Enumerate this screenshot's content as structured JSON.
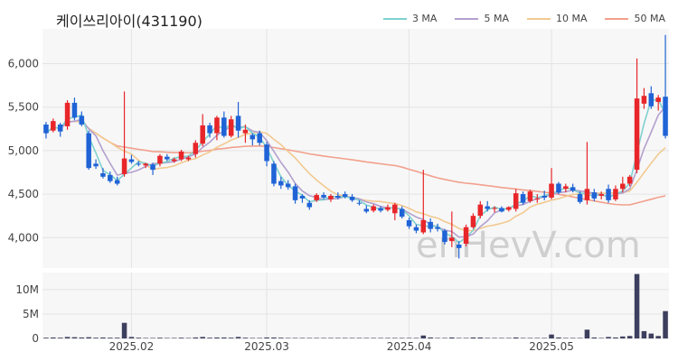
{
  "title": "케이쓰리아이(431190)",
  "watermark": "enHevV.com",
  "colors": {
    "up": "#e8262a",
    "down": "#1f63d6",
    "volume": "#3d3f5e",
    "ma3": "#7fd1cf",
    "ma5": "#b3a0cf",
    "ma10": "#f2c991",
    "ma50": "#f2a08c"
  },
  "legend": [
    {
      "label": "3 MA",
      "color": "#7fd1cf"
    },
    {
      "label": "5 MA",
      "color": "#b3a0cf"
    },
    {
      "label": "10 MA",
      "color": "#f2c991"
    },
    {
      "label": "50 MA",
      "color": "#f2a08c"
    }
  ],
  "chart_data": {
    "type": "candlestick",
    "title": "케이쓰리아이(431190)",
    "price_axis": {
      "ticks": [
        4000,
        4500,
        5000,
        5500,
        6000
      ],
      "tick_labels": [
        "4,000",
        "4,500",
        "5,000",
        "5,500",
        "6,000"
      ],
      "range": [
        3650,
        6400
      ]
    },
    "volume_axis": {
      "ticks": [
        0,
        5,
        10
      ],
      "tick_labels": [
        "0",
        "5M",
        "10M"
      ],
      "range": [
        0,
        13.5
      ],
      "unit": "M"
    },
    "x_tick_labels": [
      {
        "index": 12,
        "label": "2025.02"
      },
      {
        "index": 31,
        "label": "2025.03"
      },
      {
        "index": 51,
        "label": "2025.04"
      },
      {
        "index": 71,
        "label": "2025.05"
      }
    ],
    "grid": true,
    "candles": [
      {
        "o": 5300,
        "h": 5330,
        "l": 5140,
        "c": 5200
      },
      {
        "o": 5230,
        "h": 5370,
        "l": 5210,
        "c": 5340
      },
      {
        "o": 5300,
        "h": 5320,
        "l": 5160,
        "c": 5220
      },
      {
        "o": 5280,
        "h": 5580,
        "l": 5240,
        "c": 5550
      },
      {
        "o": 5550,
        "h": 5610,
        "l": 5350,
        "c": 5380
      },
      {
        "o": 5400,
        "h": 5450,
        "l": 5280,
        "c": 5300
      },
      {
        "o": 5200,
        "h": 5230,
        "l": 4780,
        "c": 4800
      },
      {
        "o": 4850,
        "h": 4900,
        "l": 4790,
        "c": 4820
      },
      {
        "o": 4740,
        "h": 4800,
        "l": 4680,
        "c": 4700
      },
      {
        "o": 4720,
        "h": 4760,
        "l": 4630,
        "c": 4650
      },
      {
        "o": 4660,
        "h": 4700,
        "l": 4600,
        "c": 4620
      },
      {
        "o": 4730,
        "h": 5680,
        "l": 4700,
        "c": 4910
      },
      {
        "o": 4900,
        "h": 4950,
        "l": 4850,
        "c": 4870
      },
      {
        "o": 4850,
        "h": 4880,
        "l": 4820,
        "c": 4840
      },
      {
        "o": 4830,
        "h": 4860,
        "l": 4800,
        "c": 4850
      },
      {
        "o": 4840,
        "h": 4860,
        "l": 4720,
        "c": 4780
      },
      {
        "o": 4850,
        "h": 4960,
        "l": 4820,
        "c": 4940
      },
      {
        "o": 4930,
        "h": 4960,
        "l": 4880,
        "c": 4900
      },
      {
        "o": 4880,
        "h": 4920,
        "l": 4860,
        "c": 4900
      },
      {
        "o": 4900,
        "h": 5010,
        "l": 4880,
        "c": 4990
      },
      {
        "o": 4900,
        "h": 4940,
        "l": 4880,
        "c": 4920
      },
      {
        "o": 4960,
        "h": 5120,
        "l": 4920,
        "c": 5090
      },
      {
        "o": 5080,
        "h": 5420,
        "l": 5050,
        "c": 5290
      },
      {
        "o": 5290,
        "h": 5320,
        "l": 5150,
        "c": 5200
      },
      {
        "o": 5200,
        "h": 5400,
        "l": 5120,
        "c": 5380
      },
      {
        "o": 5380,
        "h": 5450,
        "l": 5150,
        "c": 5170
      },
      {
        "o": 5170,
        "h": 5400,
        "l": 5150,
        "c": 5360
      },
      {
        "o": 5400,
        "h": 5560,
        "l": 5150,
        "c": 5230
      },
      {
        "o": 5200,
        "h": 5300,
        "l": 5090,
        "c": 5240
      },
      {
        "o": 5180,
        "h": 5200,
        "l": 5060,
        "c": 5130
      },
      {
        "o": 5200,
        "h": 5230,
        "l": 5060,
        "c": 5090
      },
      {
        "o": 5070,
        "h": 5100,
        "l": 4820,
        "c": 4880
      },
      {
        "o": 4850,
        "h": 4880,
        "l": 4590,
        "c": 4620
      },
      {
        "o": 4650,
        "h": 4700,
        "l": 4560,
        "c": 4600
      },
      {
        "o": 4620,
        "h": 4660,
        "l": 4550,
        "c": 4580
      },
      {
        "o": 4590,
        "h": 4620,
        "l": 4390,
        "c": 4430
      },
      {
        "o": 4480,
        "h": 4500,
        "l": 4400,
        "c": 4450
      },
      {
        "o": 4400,
        "h": 4430,
        "l": 4320,
        "c": 4350
      },
      {
        "o": 4430,
        "h": 4510,
        "l": 4410,
        "c": 4490
      },
      {
        "o": 4490,
        "h": 4520,
        "l": 4440,
        "c": 4460
      },
      {
        "o": 4440,
        "h": 4500,
        "l": 4410,
        "c": 4480
      },
      {
        "o": 4480,
        "h": 4520,
        "l": 4440,
        "c": 4460
      },
      {
        "o": 4500,
        "h": 4530,
        "l": 4450,
        "c": 4470
      },
      {
        "o": 4470,
        "h": 4500,
        "l": 4410,
        "c": 4430
      },
      {
        "o": 4400,
        "h": 4430,
        "l": 4370,
        "c": 4390
      },
      {
        "o": 4330,
        "h": 4370,
        "l": 4280,
        "c": 4300
      },
      {
        "o": 4310,
        "h": 4380,
        "l": 4290,
        "c": 4360
      },
      {
        "o": 4340,
        "h": 4360,
        "l": 4290,
        "c": 4310
      },
      {
        "o": 4320,
        "h": 4380,
        "l": 4300,
        "c": 4350
      },
      {
        "o": 4280,
        "h": 4400,
        "l": 4200,
        "c": 4380
      },
      {
        "o": 4330,
        "h": 4360,
        "l": 4220,
        "c": 4240
      },
      {
        "o": 4200,
        "h": 4230,
        "l": 4100,
        "c": 4130
      },
      {
        "o": 4120,
        "h": 4150,
        "l": 4050,
        "c": 4080
      },
      {
        "o": 4060,
        "h": 4780,
        "l": 4040,
        "c": 4200
      },
      {
        "o": 4180,
        "h": 4220,
        "l": 4060,
        "c": 4100
      },
      {
        "o": 4120,
        "h": 4160,
        "l": 4070,
        "c": 4100
      },
      {
        "o": 4080,
        "h": 4100,
        "l": 3920,
        "c": 3950
      },
      {
        "o": 3960,
        "h": 4300,
        "l": 3890,
        "c": 4000
      },
      {
        "o": 3920,
        "h": 3960,
        "l": 3760,
        "c": 3880
      },
      {
        "o": 3930,
        "h": 4150,
        "l": 3900,
        "c": 4120
      },
      {
        "o": 4120,
        "h": 4280,
        "l": 4100,
        "c": 4250
      },
      {
        "o": 4250,
        "h": 4420,
        "l": 4220,
        "c": 4380
      },
      {
        "o": 4360,
        "h": 4420,
        "l": 4300,
        "c": 4330
      },
      {
        "o": 4330,
        "h": 4360,
        "l": 4290,
        "c": 4340
      },
      {
        "o": 4340,
        "h": 4360,
        "l": 4290,
        "c": 4300
      },
      {
        "o": 4320,
        "h": 4360,
        "l": 4300,
        "c": 4350
      },
      {
        "o": 4330,
        "h": 4560,
        "l": 4300,
        "c": 4510
      },
      {
        "o": 4500,
        "h": 4530,
        "l": 4380,
        "c": 4400
      },
      {
        "o": 4420,
        "h": 4550,
        "l": 4400,
        "c": 4530
      },
      {
        "o": 4450,
        "h": 4500,
        "l": 4400,
        "c": 4450
      },
      {
        "o": 4480,
        "h": 4540,
        "l": 4430,
        "c": 4460
      },
      {
        "o": 4460,
        "h": 4800,
        "l": 4440,
        "c": 4620
      },
      {
        "o": 4620,
        "h": 4640,
        "l": 4500,
        "c": 4520
      },
      {
        "o": 4560,
        "h": 4620,
        "l": 4520,
        "c": 4590
      },
      {
        "o": 4580,
        "h": 4620,
        "l": 4520,
        "c": 4540
      },
      {
        "o": 4500,
        "h": 4530,
        "l": 4390,
        "c": 4410
      },
      {
        "o": 4430,
        "h": 5100,
        "l": 4380,
        "c": 4560
      },
      {
        "o": 4520,
        "h": 4560,
        "l": 4420,
        "c": 4450
      },
      {
        "o": 4480,
        "h": 4530,
        "l": 4440,
        "c": 4500
      },
      {
        "o": 4560,
        "h": 4610,
        "l": 4400,
        "c": 4430
      },
      {
        "o": 4440,
        "h": 4600,
        "l": 4420,
        "c": 4560
      },
      {
        "o": 4560,
        "h": 4700,
        "l": 4520,
        "c": 4620
      },
      {
        "o": 4620,
        "h": 4720,
        "l": 4590,
        "c": 4700
      },
      {
        "o": 4780,
        "h": 6060,
        "l": 4740,
        "c": 5600
      },
      {
        "o": 5540,
        "h": 5720,
        "l": 5480,
        "c": 5630
      },
      {
        "o": 5660,
        "h": 5740,
        "l": 5480,
        "c": 5510
      },
      {
        "o": 5560,
        "h": 5640,
        "l": 5460,
        "c": 5610
      },
      {
        "o": 5620,
        "h": 6330,
        "l": 5140,
        "c": 5170
      }
    ],
    "volume": [
      0.15,
      0.2,
      0.15,
      0.3,
      0.25,
      0.2,
      0.25,
      0.15,
      0.2,
      0.15,
      0.15,
      3.2,
      0.3,
      0.15,
      0.1,
      0.1,
      0.15,
      0.1,
      0.1,
      0.15,
      0.1,
      0.2,
      0.3,
      0.15,
      0.2,
      0.2,
      0.15,
      0.3,
      0.15,
      0.1,
      0.1,
      0.2,
      0.2,
      0.15,
      0.1,
      0.1,
      0.1,
      0.1,
      0.1,
      0.1,
      0.1,
      0.1,
      0.1,
      0.1,
      0.1,
      0.1,
      0.1,
      0.1,
      0.1,
      0.1,
      0.1,
      0.1,
      0.1,
      0.6,
      0.2,
      0.1,
      0.1,
      0.2,
      0.1,
      0.1,
      0.2,
      0.2,
      0.1,
      0.1,
      0.1,
      0.1,
      0.2,
      0.1,
      0.1,
      0.1,
      0.1,
      0.8,
      0.2,
      0.1,
      0.1,
      0.1,
      1.8,
      0.2,
      0.1,
      0.3,
      0.2,
      0.4,
      0.5,
      13.2,
      1.5,
      1.0,
      0.5,
      5.6
    ]
  }
}
